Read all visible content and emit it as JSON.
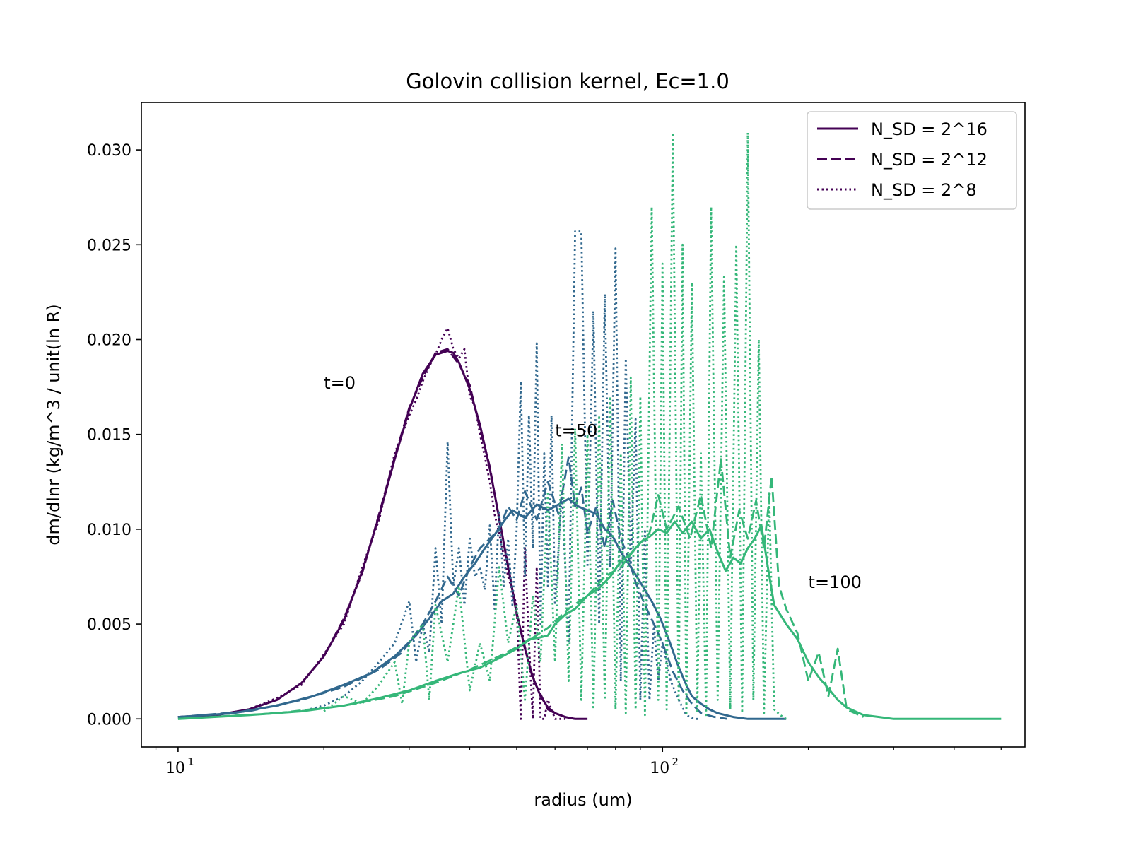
{
  "chart_data": {
    "type": "line",
    "title": "Golovin collision kernel, Ec=1.0",
    "xlabel": "radius (um)",
    "ylabel": "dm/dlnr (kg/m^3 / unit(ln R)",
    "xscale": "log",
    "xlim": [
      8.4,
      560
    ],
    "ylim": [
      -0.00148,
      0.0325
    ],
    "x_ticks": [
      {
        "value": 10,
        "base": "10",
        "exp": "1"
      },
      {
        "value": 100,
        "base": "10",
        "exp": "2"
      }
    ],
    "y_ticks": [
      {
        "value": 0.0,
        "label": "0.000"
      },
      {
        "value": 0.005,
        "label": "0.005"
      },
      {
        "value": 0.01,
        "label": "0.010"
      },
      {
        "value": 0.015,
        "label": "0.015"
      },
      {
        "value": 0.02,
        "label": "0.020"
      },
      {
        "value": 0.025,
        "label": "0.025"
      },
      {
        "value": 0.03,
        "label": "0.030"
      }
    ],
    "grid": false,
    "legend_position": "top-right",
    "legend": [
      {
        "label": "N_SD = 2^16",
        "style": "solid"
      },
      {
        "label": "N_SD = 2^12",
        "style": "dashed"
      },
      {
        "label": "N_SD = 2^8",
        "style": "dotted"
      }
    ],
    "annotations": [
      {
        "text": "t=0",
        "x": 20.0,
        "y": 0.0177
      },
      {
        "text": "t=50",
        "x": 60.0,
        "y": 0.0152
      },
      {
        "text": "t=100",
        "x": 200.0,
        "y": 0.0072
      }
    ],
    "colors": {
      "t0": "#440154",
      "t50": "#31688e",
      "t100": "#35b779"
    },
    "series": [
      {
        "time": "t=0",
        "style": "solid",
        "color": "#440154",
        "x": [
          10,
          12,
          14,
          16,
          18,
          20,
          22,
          24,
          26,
          28,
          30,
          32,
          34,
          36,
          37,
          38,
          40,
          42,
          44,
          46,
          48,
          50,
          52,
          54,
          56,
          58,
          60,
          63,
          66,
          70
        ],
        "y": [
          0.0001,
          0.0002,
          0.0005,
          0.001,
          0.0019,
          0.0033,
          0.0052,
          0.0078,
          0.0107,
          0.0137,
          0.0163,
          0.0182,
          0.0192,
          0.0194,
          0.0193,
          0.0188,
          0.0174,
          0.0155,
          0.0132,
          0.0106,
          0.008,
          0.0056,
          0.0037,
          0.0022,
          0.0012,
          0.0006,
          0.0003,
          0.0001,
          0.0,
          0.0
        ]
      },
      {
        "time": "t=0",
        "style": "dashed",
        "color": "#440154",
        "x": [
          10,
          12,
          14,
          16,
          18,
          20,
          22,
          24,
          26,
          28,
          30,
          32,
          34,
          36,
          38,
          40,
          42,
          44,
          46,
          48,
          50,
          52,
          54,
          56,
          58,
          60,
          63,
          66
        ],
        "y": [
          0.0001,
          0.0002,
          0.0005,
          0.001,
          0.0019,
          0.0033,
          0.0053,
          0.0077,
          0.0108,
          0.0138,
          0.0164,
          0.018,
          0.0193,
          0.0195,
          0.0187,
          0.0176,
          0.0153,
          0.0133,
          0.0105,
          0.0081,
          0.0055,
          0.0038,
          0.0021,
          0.0013,
          0.0005,
          0.0003,
          0.0001,
          0.0
        ]
      },
      {
        "time": "t=0",
        "style": "dotted",
        "color": "#440154",
        "x": [
          10,
          12,
          14,
          16,
          18,
          20,
          22,
          24,
          26,
          28,
          30,
          31,
          32,
          33,
          34,
          35,
          36,
          37,
          38,
          39,
          40,
          41,
          42,
          43,
          44,
          45,
          46,
          48,
          50,
          51,
          52,
          53,
          54,
          55,
          56,
          57,
          58,
          60,
          63
        ],
        "y": [
          0.0001,
          0.0002,
          0.0005,
          0.0011,
          0.0018,
          0.0034,
          0.005,
          0.008,
          0.0105,
          0.014,
          0.016,
          0.0168,
          0.0178,
          0.0186,
          0.0192,
          0.02,
          0.0206,
          0.0195,
          0.019,
          0.0195,
          0.017,
          0.0165,
          0.015,
          0.0138,
          0.0125,
          0.0108,
          0.0098,
          0.0075,
          0.006,
          0.0,
          0.009,
          0.004,
          0.0,
          0.008,
          0.0,
          0.0,
          0.001,
          0.0,
          0.0
        ]
      },
      {
        "time": "t=50",
        "style": "solid",
        "color": "#31688e",
        "x": [
          10,
          13,
          16,
          19,
          22,
          25,
          28,
          31,
          33,
          35,
          37,
          39,
          41,
          43,
          45,
          47,
          49,
          52,
          55,
          58,
          61,
          64,
          67,
          70,
          73,
          76,
          79,
          82,
          85,
          88,
          91,
          95,
          99,
          103,
          107,
          111,
          115,
          120,
          125,
          130,
          135,
          140,
          150,
          160,
          170,
          180
        ],
        "y": [
          0.0001,
          0.0003,
          0.0007,
          0.0012,
          0.0018,
          0.0024,
          0.0033,
          0.0044,
          0.0053,
          0.0062,
          0.0066,
          0.0075,
          0.0082,
          0.009,
          0.0097,
          0.0104,
          0.011,
          0.0106,
          0.0113,
          0.011,
          0.0113,
          0.0116,
          0.0112,
          0.011,
          0.0108,
          0.01,
          0.0096,
          0.0088,
          0.0082,
          0.0076,
          0.007,
          0.0062,
          0.0053,
          0.0042,
          0.003,
          0.002,
          0.0012,
          0.0008,
          0.0005,
          0.0003,
          0.0002,
          0.0001,
          0.0,
          0.0,
          0.0,
          0.0
        ]
      },
      {
        "time": "t=50",
        "style": "dashed",
        "color": "#31688e",
        "x": [
          10,
          14,
          18,
          22,
          26,
          29,
          32,
          34,
          36,
          38,
          40,
          42,
          44,
          46,
          48,
          50,
          52,
          55,
          58,
          61,
          64,
          66,
          68,
          70,
          73,
          76,
          79,
          82,
          85,
          88,
          92,
          96,
          100,
          105,
          110,
          115,
          120,
          128,
          136
        ],
        "y": [
          0.0001,
          0.0004,
          0.001,
          0.0017,
          0.0026,
          0.0035,
          0.005,
          0.0062,
          0.0075,
          0.0065,
          0.008,
          0.009,
          0.0095,
          0.01,
          0.0112,
          0.0105,
          0.012,
          0.0105,
          0.0125,
          0.0108,
          0.0138,
          0.0112,
          0.0122,
          0.0098,
          0.0112,
          0.009,
          0.0115,
          0.0095,
          0.0085,
          0.0072,
          0.006,
          0.005,
          0.004,
          0.0025,
          0.0015,
          0.0008,
          0.0003,
          0.0001,
          0.0
        ]
      },
      {
        "time": "t=50",
        "style": "dotted",
        "color": "#31688e",
        "x": [
          18,
          20,
          22,
          24,
          26,
          28,
          30,
          31,
          32,
          33,
          34,
          35,
          36,
          37,
          38,
          39,
          40,
          41,
          42,
          43,
          44,
          45,
          46,
          47,
          48,
          49,
          50,
          51,
          52,
          53,
          54,
          55,
          56,
          57,
          58,
          59,
          60,
          62,
          64,
          66,
          68,
          70,
          72,
          74,
          76,
          78,
          80,
          82,
          84,
          86,
          88,
          90,
          92,
          94,
          96,
          98,
          100,
          104,
          108,
          112,
          116,
          120
        ],
        "y": [
          0.0004,
          0.0007,
          0.0012,
          0.002,
          0.003,
          0.004,
          0.0062,
          0.003,
          0.005,
          0.0035,
          0.009,
          0.005,
          0.0146,
          0.007,
          0.009,
          0.006,
          0.0095,
          0.0075,
          0.008,
          0.0068,
          0.0102,
          0.0058,
          0.011,
          0.007,
          0.0095,
          0.006,
          0.01,
          0.0178,
          0.0075,
          0.016,
          0.009,
          0.0198,
          0.005,
          0.014,
          0.007,
          0.016,
          0.006,
          0.012,
          0.004,
          0.0257,
          0.0257,
          0.008,
          0.0215,
          0.005,
          0.0224,
          0.008,
          0.0248,
          0.002,
          0.019,
          0.008,
          0.0158,
          0.001,
          0.01,
          0.001,
          0.005,
          0.002,
          0.004,
          0.002,
          0.001,
          0.0002,
          0.0,
          0.0
        ]
      },
      {
        "time": "t=100",
        "style": "solid",
        "color": "#35b779",
        "x": [
          10,
          14,
          18,
          22,
          26,
          30,
          34,
          38,
          42,
          46,
          50,
          53,
          56,
          58,
          60,
          63,
          66,
          70,
          74,
          78,
          82,
          86,
          90,
          94,
          98,
          102,
          106,
          110,
          115,
          120,
          125,
          130,
          135,
          140,
          145,
          150,
          155,
          160,
          165,
          170,
          175,
          180,
          190,
          200,
          210,
          220,
          230,
          240,
          260,
          280,
          300,
          330,
          360,
          400,
          450,
          500
        ],
        "y": [
          0.0,
          0.0002,
          0.0004,
          0.0007,
          0.0011,
          0.0015,
          0.002,
          0.0024,
          0.0027,
          0.0032,
          0.0037,
          0.0042,
          0.0043,
          0.0044,
          0.005,
          0.0055,
          0.0058,
          0.0065,
          0.0069,
          0.0075,
          0.0083,
          0.0087,
          0.0093,
          0.0096,
          0.01,
          0.0098,
          0.0104,
          0.0098,
          0.0104,
          0.0095,
          0.01,
          0.0088,
          0.0078,
          0.0085,
          0.0082,
          0.009,
          0.0095,
          0.0102,
          0.008,
          0.006,
          0.0055,
          0.005,
          0.0042,
          0.003,
          0.0022,
          0.0016,
          0.001,
          0.0006,
          0.0002,
          0.0001,
          0.0,
          0.0,
          0.0,
          0.0,
          0.0,
          0.0
        ]
      },
      {
        "time": "t=100",
        "style": "dashed",
        "color": "#35b779",
        "x": [
          10,
          16,
          22,
          28,
          34,
          40,
          46,
          52,
          58,
          64,
          70,
          76,
          82,
          88,
          94,
          98,
          102,
          108,
          114,
          120,
          126,
          132,
          138,
          144,
          150,
          156,
          162,
          168,
          174,
          180,
          190,
          200,
          210,
          220,
          230,
          240,
          260
        ],
        "y": [
          0.0,
          0.0003,
          0.0007,
          0.0012,
          0.0019,
          0.0026,
          0.0033,
          0.004,
          0.0048,
          0.0058,
          0.0065,
          0.0075,
          0.008,
          0.009,
          0.0098,
          0.0118,
          0.01,
          0.0112,
          0.0095,
          0.0118,
          0.009,
          0.0137,
          0.0085,
          0.011,
          0.0095,
          0.0115,
          0.009,
          0.0128,
          0.007,
          0.0058,
          0.0045,
          0.002,
          0.0035,
          0.0012,
          0.0037,
          0.0005,
          0.0001
        ]
      },
      {
        "time": "t=100",
        "style": "dotted",
        "color": "#35b779",
        "x": [
          20,
          22,
          24,
          26,
          28,
          29,
          30,
          32,
          33,
          34,
          36,
          38,
          40,
          42,
          44,
          46,
          48,
          50,
          52,
          54,
          56,
          58,
          60,
          62,
          64,
          66,
          68,
          70,
          72,
          74,
          76,
          78,
          80,
          82,
          84,
          86,
          88,
          90,
          92,
          95,
          98,
          100,
          102,
          105,
          108,
          110,
          112,
          115,
          118,
          120,
          123,
          126,
          130,
          134,
          138,
          142,
          146,
          150,
          154,
          158,
          162,
          166,
          170,
          175,
          180
        ],
        "y": [
          0.0004,
          0.0012,
          0.0008,
          0.0018,
          0.003,
          0.0008,
          0.004,
          0.005,
          0.001,
          0.006,
          0.003,
          0.007,
          0.0015,
          0.004,
          0.002,
          0.008,
          0.004,
          0.006,
          0.001,
          0.0065,
          0.003,
          0.012,
          0.003,
          0.0145,
          0.002,
          0.0153,
          0.001,
          0.015,
          0.0005,
          0.016,
          0.001,
          0.017,
          0.0005,
          0.014,
          0.0003,
          0.018,
          0.0005,
          0.017,
          0.0002,
          0.027,
          0.001,
          0.024,
          0.0005,
          0.0309,
          0.001,
          0.025,
          0.0002,
          0.023,
          0.0003,
          0.014,
          0.0002,
          0.027,
          0.001,
          0.0233,
          0.0005,
          0.025,
          0.0003,
          0.0309,
          0.001,
          0.02,
          0.0003,
          0.012,
          0.0005,
          0.0002,
          0.0
        ]
      }
    ]
  }
}
